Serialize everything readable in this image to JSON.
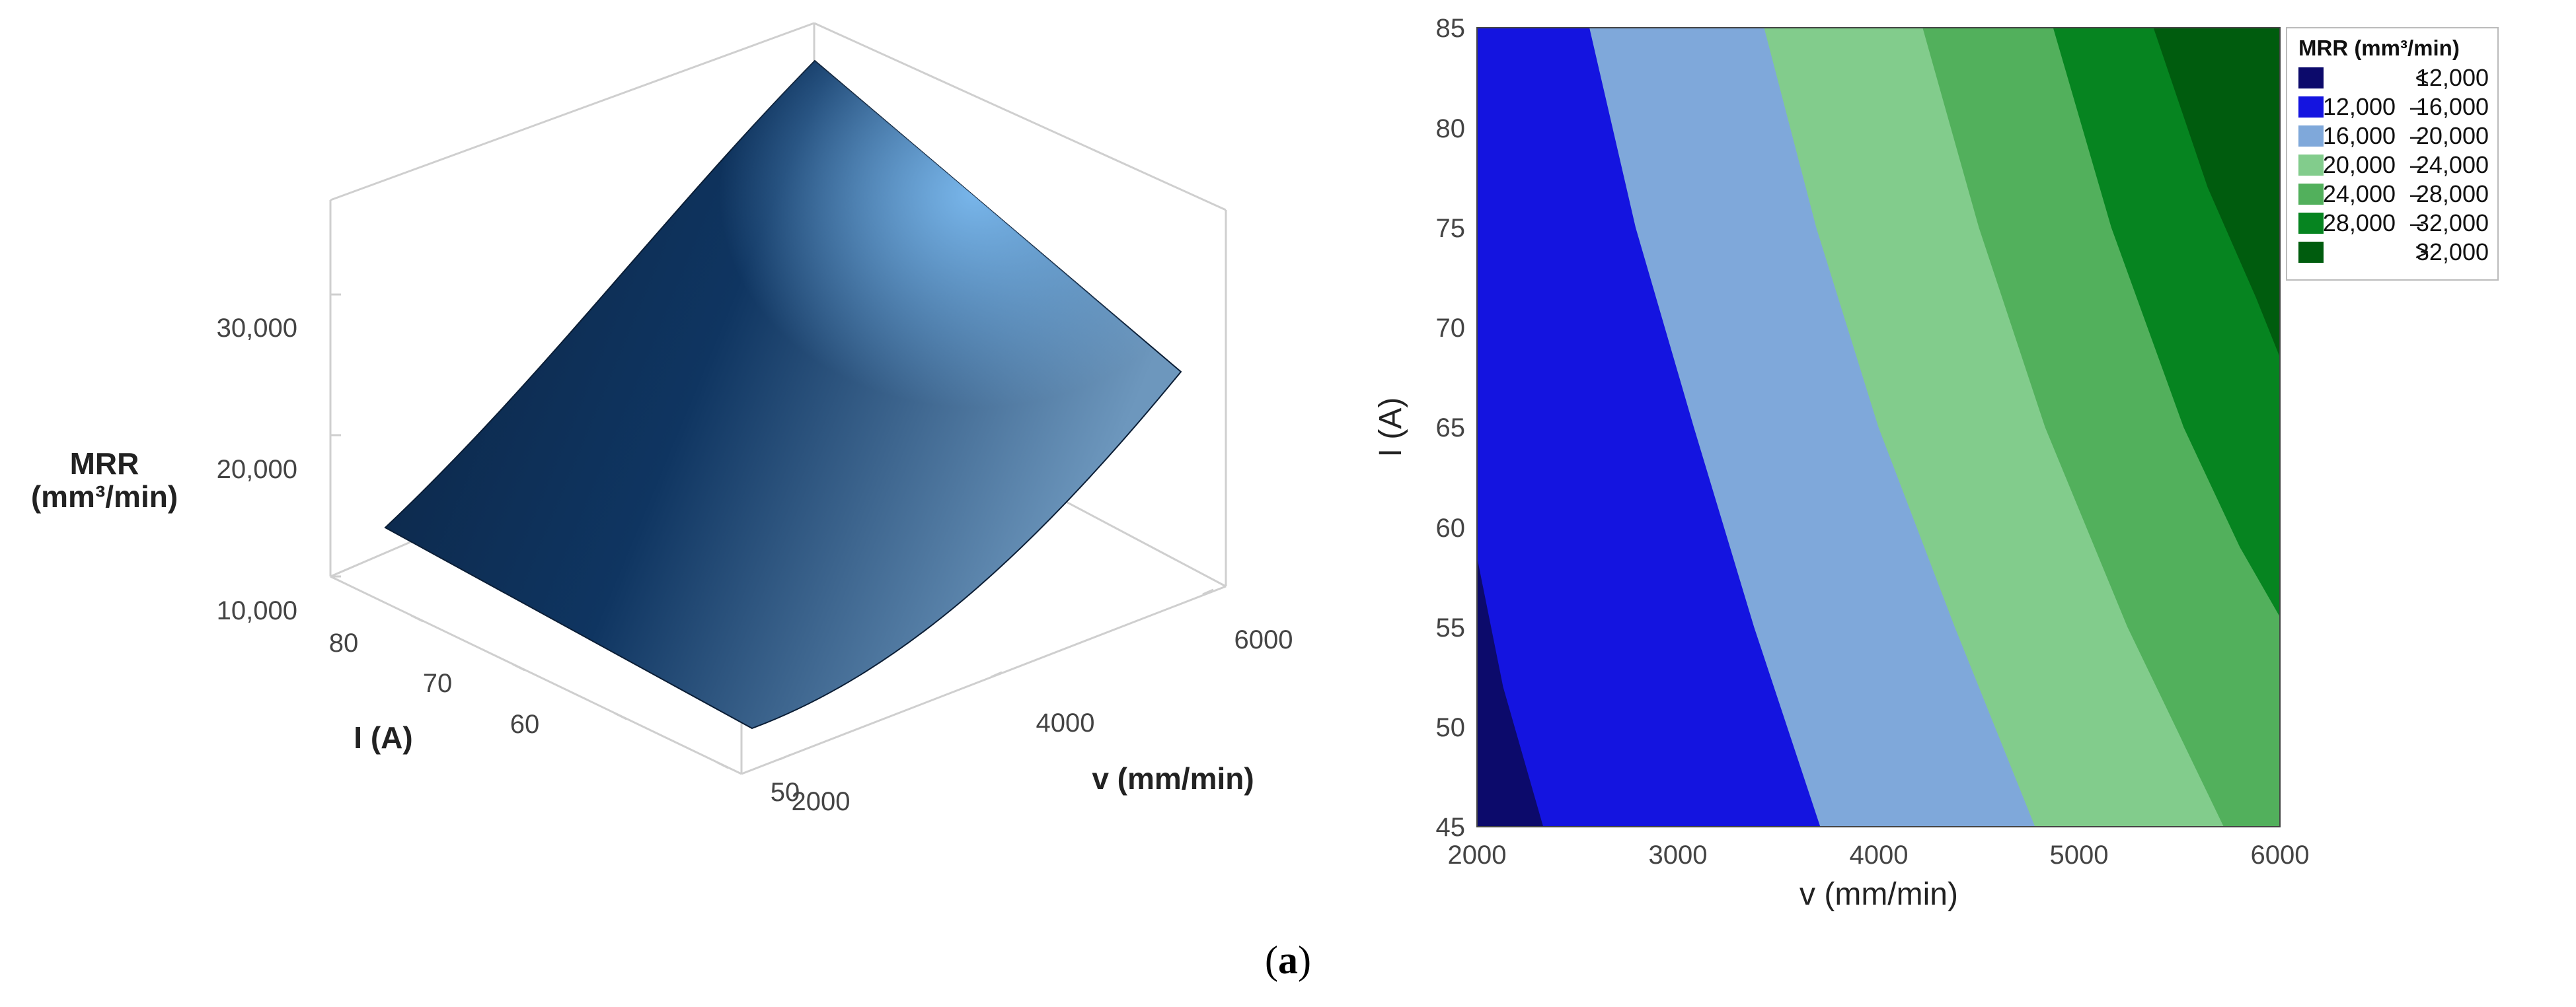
{
  "chart_data": [
    {
      "type": "surface",
      "title": "",
      "xlabel": "v (mm/min)",
      "ylabel": "I (A)",
      "zlabel_lines": [
        "MRR",
        "(mm³/min)"
      ],
      "x_ticks": [
        "2000",
        "4000",
        "6000"
      ],
      "y_ticks": [
        "50",
        "60",
        "70",
        "80"
      ],
      "z_ticks": [
        "10,000",
        "20,000",
        "30,000"
      ],
      "xlim": [
        2000,
        6000
      ],
      "ylim": [
        45,
        85
      ],
      "zlim": [
        10000,
        36000
      ],
      "corners": [
        {
          "v": 2000,
          "I": 45,
          "MRR": 11200
        },
        {
          "v": 2000,
          "I": 85,
          "MRR": 15000
        },
        {
          "v": 6000,
          "I": 45,
          "MRR": 26500
        },
        {
          "v": 6000,
          "I": 85,
          "MRR": 35000
        }
      ],
      "surface_color": "#1f4f80",
      "highlight_color": "#7fbff5"
    },
    {
      "type": "contour",
      "title": "",
      "xlabel": "v (mm/min)",
      "ylabel": "I (A)",
      "xlim": [
        2000,
        6000
      ],
      "ylim": [
        45,
        85
      ],
      "x_ticks": [
        "2000",
        "3000",
        "4000",
        "5000",
        "6000"
      ],
      "y_ticks": [
        "45",
        "50",
        "55",
        "60",
        "65",
        "70",
        "75",
        "80",
        "85"
      ],
      "legend": {
        "title": "MRR (mm³/min)",
        "placement": "right",
        "entries": [
          {
            "low": "<",
            "high": "12,000",
            "color": "#0c0a6b"
          },
          {
            "low": "12,000",
            "dash": "–",
            "high": "16,000",
            "color": "#1414e0"
          },
          {
            "low": "16,000",
            "dash": "–",
            "high": "20,000",
            "color": "#7fa8da"
          },
          {
            "low": "20,000",
            "dash": "–",
            "high": "24,000",
            "color": "#82cc8c"
          },
          {
            "low": "24,000",
            "dash": "–",
            "high": "28,000",
            "color": "#52b05c"
          },
          {
            "low": "28,000",
            "dash": "–",
            "high": "32,000",
            "color": "#068420"
          },
          {
            "low": ">",
            "high": "32,000",
            "color": "#005c0e"
          }
        ]
      },
      "contour_lines": [
        {
          "level": 12000,
          "points": [
            {
              "v": 2000,
              "I": 58.5
            },
            {
              "v": 2130,
              "I": 52
            },
            {
              "v": 2330,
              "I": 45
            }
          ]
        },
        {
          "level": 16000,
          "points": [
            {
              "v": 2560,
              "I": 85
            },
            {
              "v": 2790,
              "I": 75
            },
            {
              "v": 3080,
              "I": 65
            },
            {
              "v": 3380,
              "I": 55
            },
            {
              "v": 3710,
              "I": 45
            }
          ]
        },
        {
          "level": 20000,
          "points": [
            {
              "v": 3430,
              "I": 85
            },
            {
              "v": 3690,
              "I": 75
            },
            {
              "v": 4000,
              "I": 65
            },
            {
              "v": 4380,
              "I": 55
            },
            {
              "v": 4780,
              "I": 45
            }
          ]
        },
        {
          "level": 24000,
          "points": [
            {
              "v": 4220,
              "I": 85
            },
            {
              "v": 4500,
              "I": 75
            },
            {
              "v": 4830,
              "I": 65
            },
            {
              "v": 5240,
              "I": 55
            },
            {
              "v": 5720,
              "I": 45
            }
          ]
        },
        {
          "level": 28000,
          "points": [
            {
              "v": 4870,
              "I": 85
            },
            {
              "v": 5160,
              "I": 75
            },
            {
              "v": 5520,
              "I": 65
            },
            {
              "v": 5800,
              "I": 59
            },
            {
              "v": 6000,
              "I": 55.5
            }
          ]
        },
        {
          "level": 32000,
          "points": [
            {
              "v": 5370,
              "I": 85
            },
            {
              "v": 5640,
              "I": 77
            },
            {
              "v": 5880,
              "I": 71.5
            },
            {
              "v": 6000,
              "I": 68.5
            }
          ]
        }
      ]
    }
  ],
  "caption": {
    "open": "(",
    "letter": "a",
    "close": ")"
  }
}
